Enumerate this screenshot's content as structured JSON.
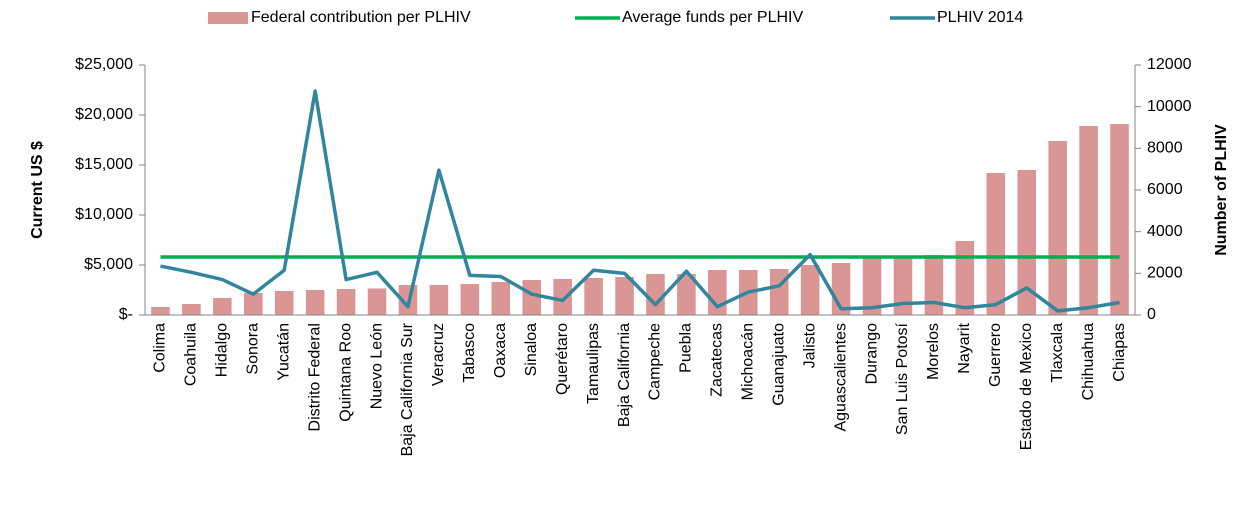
{
  "chart_data": {
    "type": "bar",
    "categories": [
      "Colima",
      "Coahuila",
      "Hidalgo",
      "Sonora",
      "Yucatán",
      "Distrito Federal",
      "Quintana Roo",
      "Nuevo León",
      "Baja California Sur",
      "Veracruz",
      "Tabasco",
      "Oaxaca",
      "Sinaloa",
      "Querétaro",
      "Tamaulipas",
      "Baja California",
      "Campeche",
      "Puebla",
      "Zacatecas",
      "Michoacán",
      "Guanajuato",
      "Jalisto",
      "Aguascalientes",
      "Durango",
      "San Luis Potosí",
      "Morelos",
      "Nayarit",
      "Guerrero",
      "Estado de Mexico",
      "Tlaxcala",
      "Chihuahua",
      "Chiapas"
    ],
    "series": [
      {
        "name": "Federal contribution per PLHIV",
        "type": "bar",
        "color": "#d99694",
        "values": [
          800,
          1100,
          1700,
          2200,
          2400,
          2500,
          2600,
          2650,
          3000,
          3000,
          3100,
          3300,
          3500,
          3600,
          3700,
          3800,
          4100,
          4100,
          4500,
          4500,
          4600,
          5000,
          5200,
          5700,
          5900,
          6000,
          7400,
          14200,
          14500,
          17400,
          18900,
          19100
        ]
      },
      {
        "name": "Average funds per PLHIV",
        "type": "line",
        "color": "#00b050",
        "values": [
          5800,
          5800,
          5800,
          5800,
          5800,
          5800,
          5800,
          5800,
          5800,
          5800,
          5800,
          5800,
          5800,
          5800,
          5800,
          5800,
          5800,
          5800,
          5800,
          5800,
          5800,
          5800,
          5800,
          5800,
          5800,
          5800,
          5800,
          5800,
          5800,
          5800,
          5800,
          5800
        ]
      },
      {
        "name": "PLHIV 2014",
        "type": "line",
        "axis": "y2",
        "color": "#31859c",
        "values": [
          2350,
          2050,
          1700,
          1000,
          2150,
          10750,
          1700,
          2050,
          400,
          6950,
          1900,
          1850,
          1000,
          700,
          2150,
          2000,
          500,
          2100,
          400,
          1100,
          1400,
          2900,
          300,
          350,
          550,
          600,
          350,
          500,
          1300,
          200,
          350,
          600
        ]
      }
    ],
    "ylabel": "Current US $",
    "y2label": "Number of PLHIV",
    "ylim": [
      0,
      25000
    ],
    "yticks": [
      {
        "value": 0,
        "label": "$-"
      },
      {
        "value": 5000,
        "label": "$5,000"
      },
      {
        "value": 10000,
        "label": "$10,000"
      },
      {
        "value": 15000,
        "label": "$15,000"
      },
      {
        "value": 20000,
        "label": "$20,000"
      },
      {
        "value": 25000,
        "label": "$25,000"
      }
    ],
    "y2lim": [
      0,
      12000
    ],
    "y2ticks": [
      0,
      2000,
      4000,
      6000,
      8000,
      10000,
      12000
    ],
    "legend": "top"
  }
}
